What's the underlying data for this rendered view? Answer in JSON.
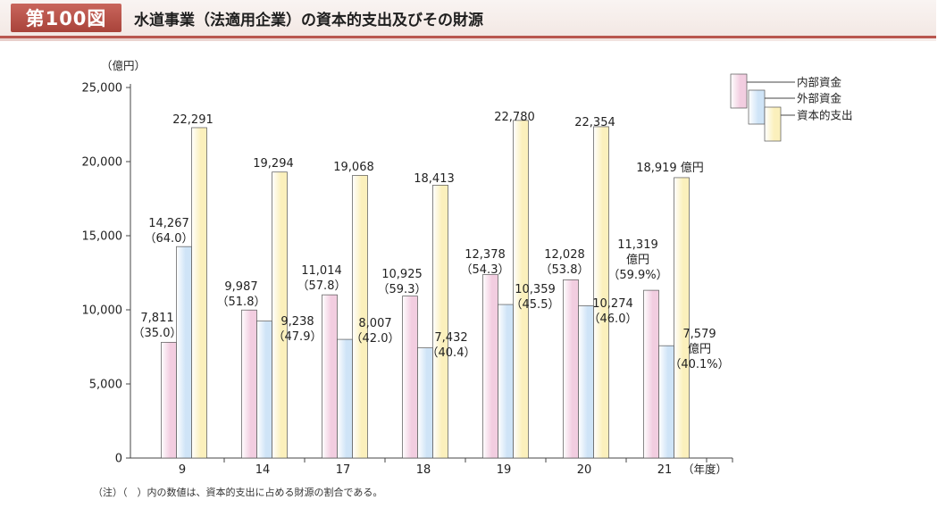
{
  "header": {
    "figure_label": "第100図",
    "title": "水道事業（法適用企業）の資本的支出及びその財源"
  },
  "note": "（注）（　）内の数値は、資本的支出に占める財源の割合である。",
  "colors": {
    "internal": "#f2cde0",
    "external": "#cfe4f7",
    "capex": "#fbf0bc",
    "stroke": "#555555",
    "header_accent": "#b9574f"
  },
  "chart_data": {
    "type": "bar",
    "title": "",
    "y_unit": "（億円）",
    "x_unit": "（年度）",
    "ylim": [
      0,
      25000
    ],
    "y_ticks": [
      0,
      5000,
      10000,
      15000,
      20000,
      25000
    ],
    "y_tick_labels": [
      "0",
      "5,000",
      "10,000",
      "15,000",
      "20,000",
      "25,000"
    ],
    "grid": false,
    "legend_position": "top-right",
    "categories": [
      "9",
      "14",
      "17",
      "18",
      "19",
      "20",
      "21"
    ],
    "series": [
      {
        "name": "内部資金",
        "values": [
          7811,
          9987,
          11014,
          10925,
          12378,
          12028,
          11319
        ],
        "labels": [
          [
            "7,811",
            "（35.0）"
          ],
          [
            "9,987",
            "（51.8）"
          ],
          [
            "11,014",
            "（57.8）"
          ],
          [
            "10,925",
            "（59.3）"
          ],
          [
            "12,378",
            "（54.3）"
          ],
          [
            "12,028",
            "（53.8）"
          ],
          [
            "11,319",
            "億円",
            "（59.9%）"
          ]
        ]
      },
      {
        "name": "外部資金",
        "values": [
          14267,
          9238,
          8007,
          7432,
          10359,
          10274,
          7579
        ],
        "labels": [
          [
            "14,267",
            "（64.0）"
          ],
          [
            "9,238",
            "（47.9）"
          ],
          [
            "8,007",
            "（42.0）"
          ],
          [
            "7,432",
            "（40.4）"
          ],
          [
            "10,359",
            "（45.5）"
          ],
          [
            "10,274",
            "（46.0）"
          ],
          [
            "7,579",
            "億円",
            "（40.1%）"
          ]
        ]
      },
      {
        "name": "資本的支出",
        "values": [
          22291,
          19294,
          19068,
          18413,
          22780,
          22354,
          18919
        ],
        "labels": [
          [
            "22,291"
          ],
          [
            "19,294"
          ],
          [
            "19,068"
          ],
          [
            "18,413"
          ],
          [
            "22,780"
          ],
          [
            "22,354"
          ],
          [
            "18,919 億円"
          ]
        ]
      }
    ]
  }
}
